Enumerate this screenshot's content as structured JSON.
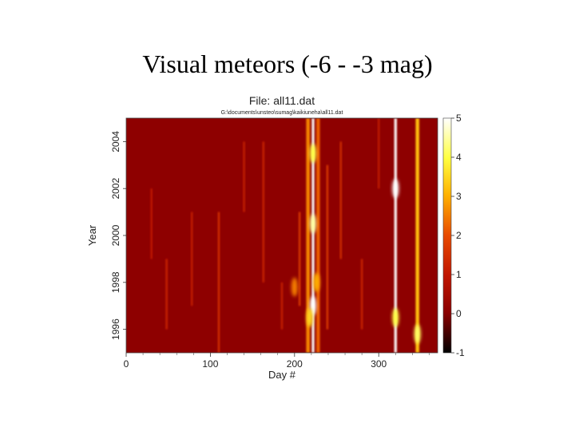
{
  "slide": {
    "title": "Visual meteors (-6 - -3 mag)"
  },
  "chart_data": {
    "type": "heatmap",
    "title": "File: all11.dat",
    "subtitle": "G:\\documents\\unsteo\\sumag\\kaikiuneha\\all11.dat",
    "xlabel": "Day #",
    "ylabel": "Year",
    "xlim": [
      0,
      370
    ],
    "ylim": [
      1995,
      2005
    ],
    "xticks": [
      0,
      100,
      200,
      300
    ],
    "yticks": [
      1996,
      1998,
      2000,
      2002,
      2004
    ],
    "colorbar": {
      "range": [
        -1,
        5
      ],
      "ticks": [
        -1,
        0,
        1,
        2,
        3,
        4,
        5
      ]
    },
    "background_level": 0.0,
    "streaks": [
      {
        "day": 222,
        "year_from": 1995,
        "year_to": 2005,
        "level": 5.0
      },
      {
        "day": 216,
        "year_from": 1995,
        "year_to": 2005,
        "level": 2.6
      },
      {
        "day": 228,
        "year_from": 1995,
        "year_to": 2005,
        "level": 2.2
      },
      {
        "day": 320,
        "year_from": 1995,
        "year_to": 2005,
        "level": 5.0
      },
      {
        "day": 346,
        "year_from": 1995,
        "year_to": 2005,
        "level": 3.2
      },
      {
        "day": 239,
        "year_from": 1996,
        "year_to": 2003,
        "level": 1.8
      },
      {
        "day": 206,
        "year_from": 1997,
        "year_to": 2001,
        "level": 1.8
      },
      {
        "day": 110,
        "year_from": 1995,
        "year_to": 2001,
        "level": 1.6
      },
      {
        "day": 255,
        "year_from": 1999,
        "year_to": 2004,
        "level": 1.5
      },
      {
        "day": 280,
        "year_from": 1996,
        "year_to": 1999,
        "level": 1.3
      },
      {
        "day": 48,
        "year_from": 1996,
        "year_to": 1999,
        "level": 1.3
      },
      {
        "day": 163,
        "year_from": 1998,
        "year_to": 2004,
        "level": 1.3
      },
      {
        "day": 78,
        "year_from": 1997,
        "year_to": 2001,
        "level": 1.2
      },
      {
        "day": 140,
        "year_from": 2001,
        "year_to": 2004,
        "level": 1.2
      },
      {
        "day": 30,
        "year_from": 1999,
        "year_to": 2002,
        "level": 1.1
      },
      {
        "day": 300,
        "year_from": 2002,
        "year_to": 2005,
        "level": 1.1
      },
      {
        "day": 185,
        "year_from": 1996,
        "year_to": 1998,
        "level": 1.2
      }
    ],
    "blobs": [
      {
        "day": 222,
        "year": 1997.0,
        "level": 5.0
      },
      {
        "day": 222,
        "year": 2000.5,
        "level": 4.5
      },
      {
        "day": 222,
        "year": 2003.5,
        "level": 4.0
      },
      {
        "day": 218,
        "year": 1996.5,
        "level": 3.5
      },
      {
        "day": 226,
        "year": 1998.0,
        "level": 3.0
      },
      {
        "day": 320,
        "year": 2002.0,
        "level": 5.0
      },
      {
        "day": 320,
        "year": 1996.5,
        "level": 4.0
      },
      {
        "day": 346,
        "year": 1995.8,
        "level": 4.2
      },
      {
        "day": 200,
        "year": 1997.8,
        "level": 2.5
      }
    ]
  }
}
